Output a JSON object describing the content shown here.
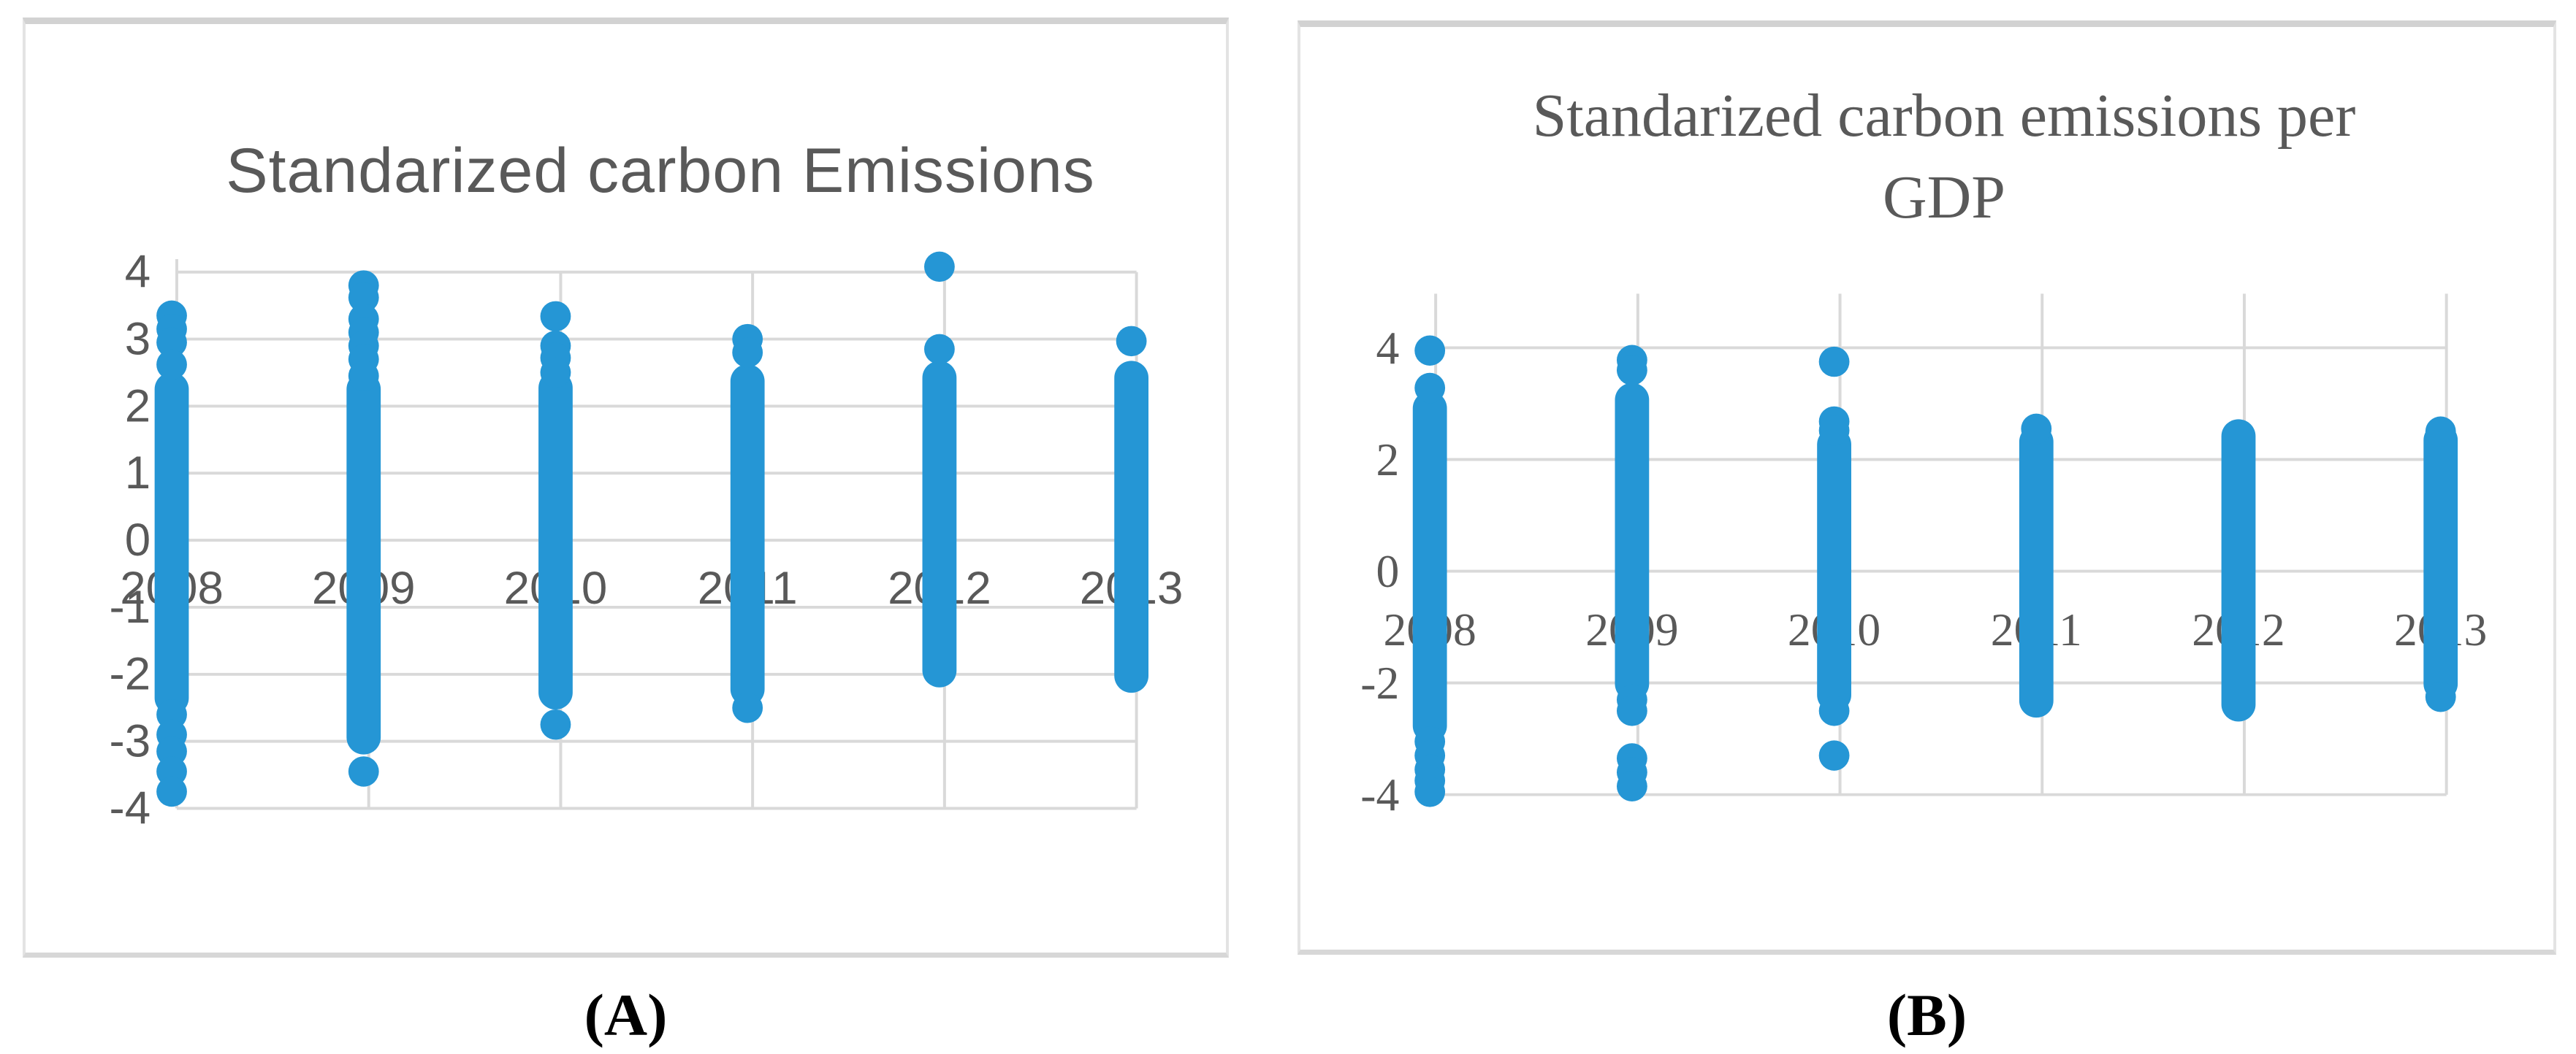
{
  "page": {
    "background": "#ffffff"
  },
  "colors": {
    "dot_blue": "#2596d5",
    "gridline": "#d9d9d9",
    "axis_text": "#595959",
    "title_text": "#595959",
    "caption_text": "#000000"
  },
  "captions": {
    "a": "(A)",
    "b": "(B)"
  },
  "chart_data": [
    {
      "id": "A",
      "type": "scatter",
      "title": "Standarized carbon Emissions",
      "caption": "(A)",
      "x_categories": [
        "2008",
        "2009",
        "2010",
        "2011",
        "2012",
        "2013"
      ],
      "y_ticks": [
        4,
        3,
        2,
        1,
        0,
        -1,
        -2,
        -3,
        -4
      ],
      "ylim": [
        -4,
        4
      ],
      "grid": true,
      "legend": "none",
      "series": [
        {
          "year": "2008",
          "strip": [
            -2.38,
            2.28
          ],
          "upper_outliers": [
            3.35,
            3.15,
            2.95,
            2.62
          ],
          "lower_outliers": [
            -2.6,
            -2.9,
            -3.15,
            -3.45,
            -3.75
          ]
        },
        {
          "year": "2009",
          "strip": [
            -2.97,
            2.28
          ],
          "upper_outliers": [
            3.8,
            3.62,
            3.3,
            3.1,
            2.9,
            2.7,
            2.45
          ],
          "lower_outliers": [
            -3.45
          ]
        },
        {
          "year": "2010",
          "strip": [
            -2.3,
            2.3
          ],
          "upper_outliers": [
            3.34,
            2.9,
            2.72,
            2.5
          ],
          "lower_outliers": [
            -2.75
          ]
        },
        {
          "year": "2011",
          "strip": [
            -2.25,
            2.4
          ],
          "upper_outliers": [
            3.0,
            2.8
          ],
          "lower_outliers": [
            -2.5
          ]
        },
        {
          "year": "2012",
          "strip": [
            -1.97,
            2.45
          ],
          "upper_outliers": [
            4.08,
            2.85
          ],
          "lower_outliers": []
        },
        {
          "year": "2013",
          "strip": [
            -2.05,
            2.45
          ],
          "upper_outliers": [
            2.97
          ],
          "lower_outliers": []
        }
      ]
    },
    {
      "id": "B",
      "type": "scatter",
      "title": "Standarized carbon emissions per GDP",
      "title_lines": [
        "Standarized carbon emissions per",
        "GDP"
      ],
      "caption": "(B)",
      "x_categories": [
        "2008",
        "2009",
        "2010",
        "2011",
        "2012",
        "2013"
      ],
      "y_ticks": [
        4,
        2,
        0,
        -2,
        -4
      ],
      "ylim": [
        -4,
        4
      ],
      "grid": true,
      "legend": "none",
      "series": [
        {
          "year": "2008",
          "strip": [
            -2.8,
            2.95
          ],
          "upper_outliers": [
            3.95,
            3.28
          ],
          "lower_outliers": [
            -3.05,
            -3.3,
            -3.55,
            -3.75,
            -3.95
          ]
        },
        {
          "year": "2009",
          "strip": [
            -2.05,
            3.1
          ],
          "upper_outliers": [
            3.78,
            3.6
          ],
          "lower_outliers": [
            -2.3,
            -2.5,
            -3.35,
            -3.6,
            -3.85
          ]
        },
        {
          "year": "2010",
          "strip": [
            -2.25,
            2.3
          ],
          "upper_outliers": [
            3.75,
            2.68,
            2.52
          ],
          "lower_outliers": [
            -2.5,
            -3.3
          ]
        },
        {
          "year": "2011",
          "strip": [
            -2.35,
            2.35
          ],
          "upper_outliers": [
            2.55
          ],
          "lower_outliers": []
        },
        {
          "year": "2012",
          "strip": [
            -2.42,
            2.45
          ],
          "upper_outliers": [],
          "lower_outliers": []
        },
        {
          "year": "2013",
          "strip": [
            -2.05,
            2.38
          ],
          "upper_outliers": [
            2.5
          ],
          "lower_outliers": [
            -2.25
          ]
        }
      ]
    }
  ]
}
